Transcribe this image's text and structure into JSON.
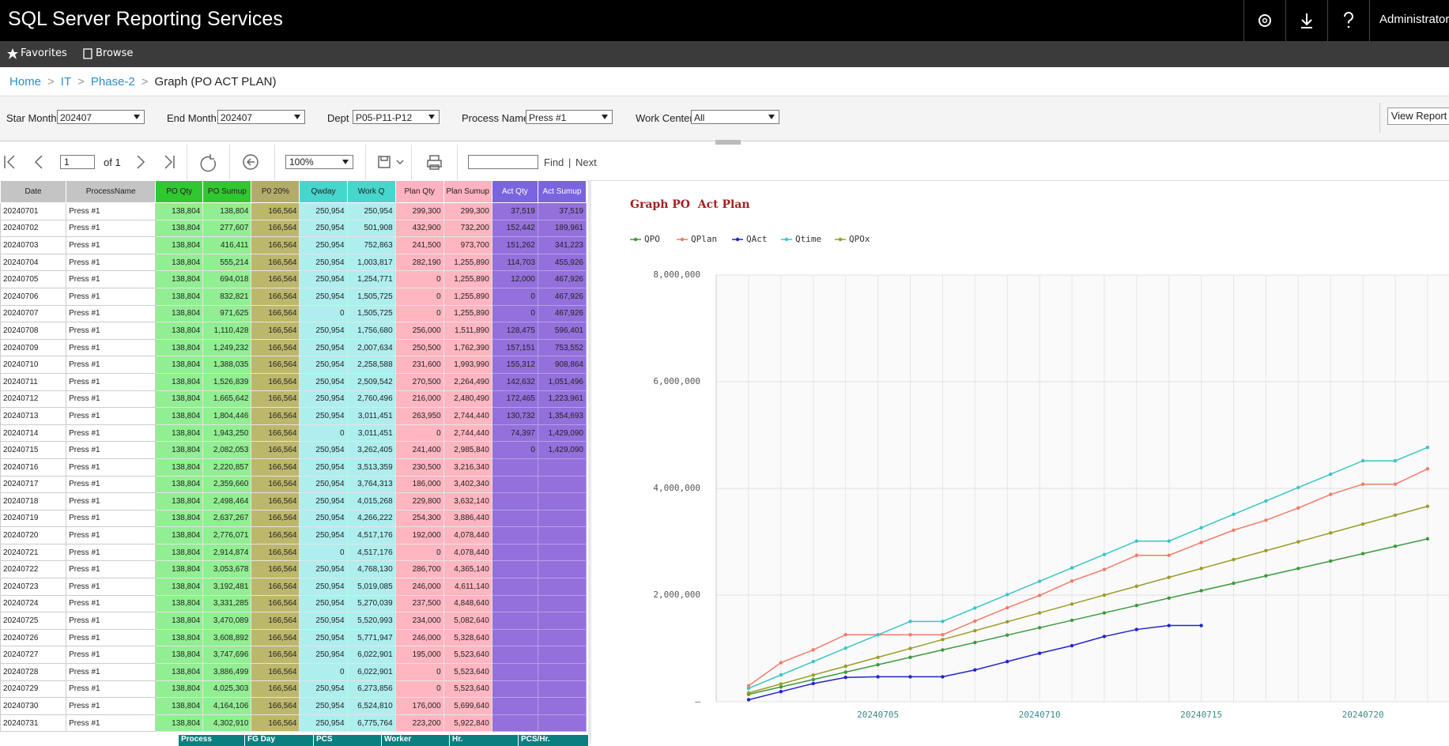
{
  "header": {
    "title": "SQL Server Reporting Services",
    "user": "Administrator"
  },
  "nav": [
    "Favorites",
    "Browse"
  ],
  "breadcrumb": [
    "Home",
    "IT",
    "Phase-2",
    "Graph (PO ACT PLAN)"
  ],
  "params": [
    {
      "label": "Star Month",
      "value": "202407"
    },
    {
      "label": "End Month",
      "value": "202407"
    },
    {
      "label": "Dept",
      "value": "P05-P11-P12"
    },
    {
      "label": "Process Name",
      "value": "Press #1"
    },
    {
      "label": "Work Center",
      "value": "All"
    }
  ],
  "view_report": "View Report",
  "toolbar": {
    "page": "1",
    "of": "of 1",
    "zoom": "100%",
    "find": "Find",
    "sep": "|",
    "next": "Next"
  },
  "table": {
    "columns": [
      "Date",
      "ProcessName",
      "PO Qty",
      "PO Sumup",
      "P0 20%",
      "Qwday",
      "Work Q",
      "Plan Qty",
      "Plan Sumup",
      "Act Qty",
      "Act Sumup"
    ],
    "rows": [
      [
        "20240701",
        "Press #1",
        "138,804",
        "138,804",
        "166,564",
        "250,954",
        "250,954",
        "299,300",
        "299,300",
        "37,519",
        "37,519"
      ],
      [
        "20240702",
        "Press #1",
        "138,804",
        "277,607",
        "166,564",
        "250,954",
        "501,908",
        "432,900",
        "732,200",
        "152,442",
        "189,961"
      ],
      [
        "20240703",
        "Press #1",
        "138,804",
        "416,411",
        "166,564",
        "250,954",
        "752,863",
        "241,500",
        "973,700",
        "151,262",
        "341,223"
      ],
      [
        "20240704",
        "Press #1",
        "138,804",
        "555,214",
        "166,564",
        "250,954",
        "1,003,817",
        "282,190",
        "1,255,890",
        "114,703",
        "455,926"
      ],
      [
        "20240705",
        "Press #1",
        "138,804",
        "694,018",
        "166,564",
        "250,954",
        "1,254,771",
        "0",
        "1,255,890",
        "12,000",
        "467,926"
      ],
      [
        "20240706",
        "Press #1",
        "138,804",
        "832,821",
        "166,564",
        "250,954",
        "1,505,725",
        "0",
        "1,255,890",
        "0",
        "467,926"
      ],
      [
        "20240707",
        "Press #1",
        "138,804",
        "971,625",
        "166,564",
        "0",
        "1,505,725",
        "0",
        "1,255,890",
        "0",
        "467,926"
      ],
      [
        "20240708",
        "Press #1",
        "138,804",
        "1,110,428",
        "166,564",
        "250,954",
        "1,756,680",
        "256,000",
        "1,511,890",
        "128,475",
        "596,401"
      ],
      [
        "20240709",
        "Press #1",
        "138,804",
        "1,249,232",
        "166,564",
        "250,954",
        "2,007,634",
        "250,500",
        "1,762,390",
        "157,151",
        "753,552"
      ],
      [
        "20240710",
        "Press #1",
        "138,804",
        "1,388,035",
        "166,564",
        "250,954",
        "2,258,588",
        "231,600",
        "1,993,990",
        "155,312",
        "908,864"
      ],
      [
        "20240711",
        "Press #1",
        "138,804",
        "1,526,839",
        "166,564",
        "250,954",
        "2,509,542",
        "270,500",
        "2,264,490",
        "142,632",
        "1,051,496"
      ],
      [
        "20240712",
        "Press #1",
        "138,804",
        "1,665,642",
        "166,564",
        "250,954",
        "2,760,496",
        "216,000",
        "2,480,490",
        "172,465",
        "1,223,961"
      ],
      [
        "20240713",
        "Press #1",
        "138,804",
        "1,804,446",
        "166,564",
        "250,954",
        "3,011,451",
        "263,950",
        "2,744,440",
        "130,732",
        "1,354,693"
      ],
      [
        "20240714",
        "Press #1",
        "138,804",
        "1,943,250",
        "166,564",
        "0",
        "3,011,451",
        "0",
        "2,744,440",
        "74,397",
        "1,429,090"
      ],
      [
        "20240715",
        "Press #1",
        "138,804",
        "2,082,053",
        "166,564",
        "250,954",
        "3,262,405",
        "241,400",
        "2,985,840",
        "0",
        "1,429,090"
      ],
      [
        "20240716",
        "Press #1",
        "138,804",
        "2,220,857",
        "166,564",
        "250,954",
        "3,513,359",
        "230,500",
        "3,216,340"
      ],
      [
        "20240717",
        "Press #1",
        "138,804",
        "2,359,660",
        "166,564",
        "250,954",
        "3,764,313",
        "186,000",
        "3,402,340"
      ],
      [
        "20240718",
        "Press #1",
        "138,804",
        "2,498,464",
        "166,564",
        "250,954",
        "4,015,268",
        "229,800",
        "3,632,140"
      ],
      [
        "20240719",
        "Press #1",
        "138,804",
        "2,637,267",
        "166,564",
        "250,954",
        "4,266,222",
        "254,300",
        "3,886,440"
      ],
      [
        "20240720",
        "Press #1",
        "138,804",
        "2,776,071",
        "166,564",
        "250,954",
        "4,517,176",
        "192,000",
        "4,078,440"
      ],
      [
        "20240721",
        "Press #1",
        "138,804",
        "2,914,874",
        "166,564",
        "0",
        "4,517,176",
        "0",
        "4,078,440"
      ],
      [
        "20240722",
        "Press #1",
        "138,804",
        "3,053,678",
        "166,564",
        "250,954",
        "4,768,130",
        "286,700",
        "4,365,140"
      ],
      [
        "20240723",
        "Press #1",
        "138,804",
        "3,192,481",
        "166,564",
        "250,954",
        "5,019,085",
        "246,000",
        "4,611,140"
      ],
      [
        "20240724",
        "Press #1",
        "138,804",
        "3,331,285",
        "166,564",
        "250,954",
        "5,270,039",
        "237,500",
        "4,848,640"
      ],
      [
        "20240725",
        "Press #1",
        "138,804",
        "3,470,089",
        "166,564",
        "250,954",
        "5,520,993",
        "234,000",
        "5,082,640"
      ],
      [
        "20240726",
        "Press #1",
        "138,804",
        "3,608,892",
        "166,564",
        "250,954",
        "5,771,947",
        "246,000",
        "5,328,640"
      ],
      [
        "20240727",
        "Press #1",
        "138,804",
        "3,747,696",
        "166,564",
        "250,954",
        "6,022,901",
        "195,000",
        "5,523,640"
      ],
      [
        "20240728",
        "Press #1",
        "138,804",
        "3,886,499",
        "166,564",
        "0",
        "6,022,901",
        "0",
        "5,523,640"
      ],
      [
        "20240729",
        "Press #1",
        "138,804",
        "4,025,303",
        "166,564",
        "250,954",
        "6,273,856",
        "0",
        "5,523,640"
      ],
      [
        "20240730",
        "Press #1",
        "138,804",
        "4,164,106",
        "166,564",
        "250,954",
        "6,524,810",
        "176,000",
        "5,699,640"
      ],
      [
        "20240731",
        "Press #1",
        "138,804",
        "4,302,910",
        "166,564",
        "250,954",
        "6,775,764",
        "223,200",
        "5,922,840"
      ]
    ]
  },
  "summary": {
    "columns": [
      "Process",
      "FG Day",
      "PCS",
      "Worker",
      "Hr.",
      "PCS/Hr."
    ]
  },
  "chart_data": {
    "type": "line",
    "title": "Graph PO  Act Plan",
    "categories": [
      null,
      null,
      null,
      null,
      "20240705",
      null,
      null,
      null,
      null,
      "20240710",
      null,
      null,
      null,
      null,
      "20240715",
      null,
      null,
      null,
      null,
      "20240720",
      null,
      null
    ],
    "ylim": [
      0,
      8000000
    ],
    "yticks": [
      {
        "value": 0,
        "label": "–"
      },
      {
        "value": 2000000,
        "label": "2,000,000"
      },
      {
        "value": 4000000,
        "label": "4,000,000"
      },
      {
        "value": 6000000,
        "label": "6,000,000"
      },
      {
        "value": 8000000,
        "label": "8,000,000"
      }
    ],
    "grid": true,
    "legend": "top-left",
    "series": [
      {
        "name": "QPO",
        "color": "#3c9a3c",
        "values": [
          138804,
          277607,
          416411,
          555214,
          694018,
          832821,
          971625,
          1110428,
          1249232,
          1388035,
          1526839,
          1665642,
          1804446,
          1943250,
          2082053,
          2220857,
          2359660,
          2498464,
          2637267,
          2776071,
          2914874,
          3053678
        ]
      },
      {
        "name": "QPlan",
        "color": "#f47a68",
        "values": [
          299300,
          732200,
          973700,
          1255890,
          1255890,
          1255890,
          1255890,
          1511890,
          1762390,
          1993990,
          2264490,
          2480490,
          2744440,
          2744440,
          2985840,
          3216340,
          3402340,
          3632140,
          3886440,
          4078440,
          4078440,
          4365140
        ]
      },
      {
        "name": "QAct",
        "color": "#2424c8",
        "values": [
          37519,
          189961,
          341223,
          455926,
          467926,
          467926,
          467926,
          596401,
          753552,
          908864,
          1051496,
          1223961,
          1354693,
          1429090,
          1429090,
          null,
          null,
          null,
          null,
          null,
          null,
          null
        ]
      },
      {
        "name": "Qtime",
        "color": "#3cc4c4",
        "values": [
          250954,
          501908,
          752863,
          1003817,
          1254771,
          1505725,
          1505725,
          1756680,
          2007634,
          2258588,
          2509542,
          2760496,
          3011451,
          3011451,
          3262405,
          3513359,
          3764313,
          4015268,
          4266222,
          4517176,
          4517176,
          4768130
        ]
      },
      {
        "name": "QPOx",
        "color": "#9c9c28",
        "values": [
          166564,
          333128,
          499692,
          666256,
          832820,
          999384,
          1165948,
          1332512,
          1499076,
          1665640,
          1832204,
          1998768,
          2165332,
          2331896,
          2498460,
          2665024,
          2831588,
          2998152,
          3164716,
          3331280,
          3497844,
          3664408
        ]
      }
    ]
  }
}
